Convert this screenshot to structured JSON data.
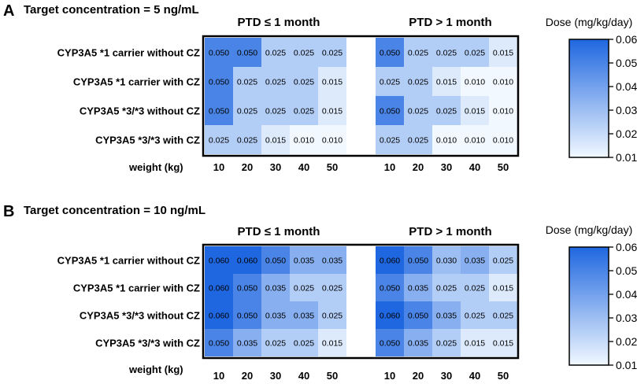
{
  "chart_data": [
    {
      "type": "heatmap",
      "panel": "A",
      "title": "Target concentration = 5 ng/mL",
      "groups": [
        "PTD ≤ 1 month",
        "PTD > 1 month"
      ],
      "rows": [
        "CYP3A5 *1 carrier without CZ",
        "CYP3A5 *1 carrier with CZ",
        "CYP3A5 *3/*3 without CZ",
        "CYP3A5 *3/*3 with CZ"
      ],
      "xlabel": "weight (kg)",
      "x": [
        "10",
        "20",
        "30",
        "40",
        "50"
      ],
      "values": [
        [
          [
            "0.050",
            "0.050",
            "0.025",
            "0.025",
            "0.025"
          ],
          [
            "0.050",
            "0.025",
            "0.025",
            "0.025",
            "0.015"
          ],
          [
            "0.050",
            "0.025",
            "0.025",
            "0.025",
            "0.015"
          ],
          [
            "0.025",
            "0.025",
            "0.015",
            "0.010",
            "0.010"
          ]
        ],
        [
          [
            "0.050",
            "0.025",
            "0.025",
            "0.025",
            "0.015"
          ],
          [
            "0.025",
            "0.025",
            "0.015",
            "0.010",
            "0.010"
          ],
          [
            "0.050",
            "0.025",
            "0.025",
            "0.015",
            "0.010"
          ],
          [
            "0.025",
            "0.025",
            "0.010",
            "0.010",
            "0.010"
          ]
        ]
      ],
      "colorbar": {
        "label": "Dose (mg/kg/day)",
        "range": [
          0.01,
          0.06
        ],
        "ticks": [
          "0.06",
          "0.05",
          "0.04",
          "0.03",
          "0.02",
          "0.01"
        ],
        "low_color": "#f1f8ff",
        "high_color": "#1f67e0"
      }
    },
    {
      "type": "heatmap",
      "panel": "B",
      "title": "Target concentration = 10 ng/mL",
      "groups": [
        "PTD ≤ 1 month",
        "PTD > 1 month"
      ],
      "rows": [
        "CYP3A5 *1 carrier without CZ",
        "CYP3A5 *1 carrier with CZ",
        "CYP3A5 *3/*3 without CZ",
        "CYP3A5 *3/*3 with CZ"
      ],
      "xlabel": "weight (kg)",
      "x": [
        "10",
        "20",
        "30",
        "40",
        "50"
      ],
      "values": [
        [
          [
            "0.060",
            "0.060",
            "0.050",
            "0.035",
            "0.035"
          ],
          [
            "0.060",
            "0.050",
            "0.035",
            "0.025",
            "0.025"
          ],
          [
            "0.060",
            "0.050",
            "0.035",
            "0.035",
            "0.025"
          ],
          [
            "0.050",
            "0.035",
            "0.025",
            "0.025",
            "0.015"
          ]
        ],
        [
          [
            "0.060",
            "0.050",
            "0.030",
            "0.035",
            "0.025"
          ],
          [
            "0.050",
            "0.035",
            "0.025",
            "0.025",
            "0.015"
          ],
          [
            "0.060",
            "0.050",
            "0.035",
            "0.025",
            "0.025"
          ],
          [
            "0.050",
            "0.035",
            "0.025",
            "0.015",
            "0.015"
          ]
        ]
      ],
      "colorbar": {
        "label": "Dose (mg/kg/day)",
        "range": [
          0.01,
          0.06
        ],
        "ticks": [
          "0.06",
          "0.05",
          "0.04",
          "0.03",
          "0.02",
          "0.01"
        ],
        "low_color": "#f1f8ff",
        "high_color": "#1f67e0"
      }
    }
  ]
}
